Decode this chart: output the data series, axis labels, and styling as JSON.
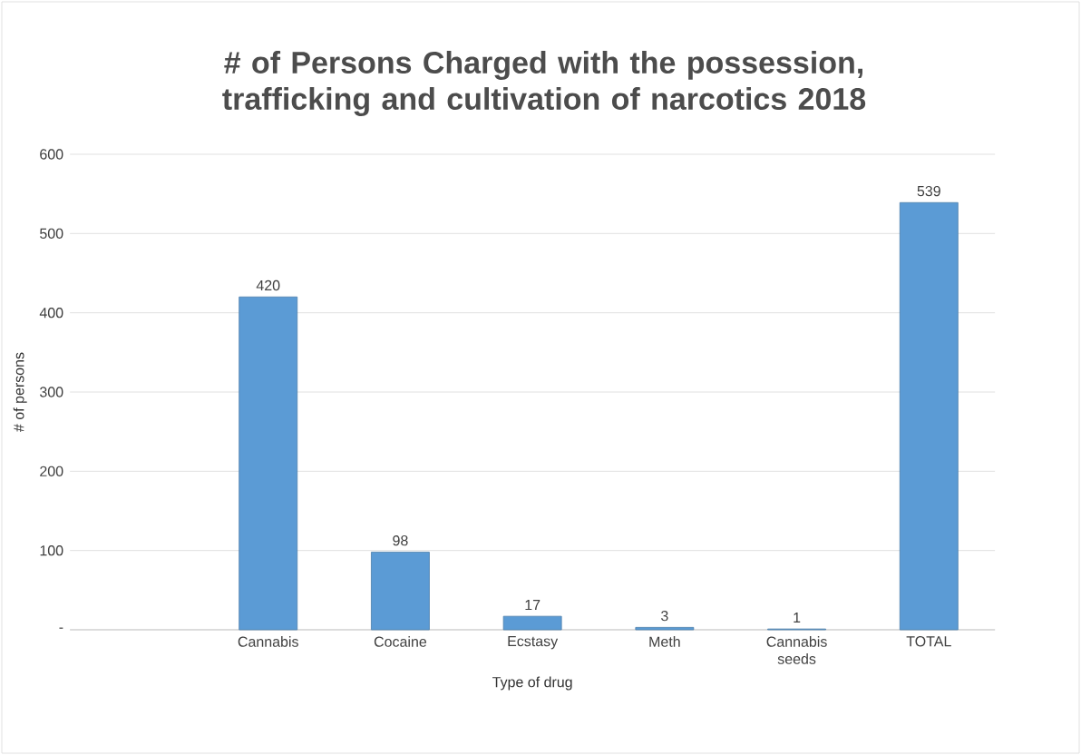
{
  "chart_data": {
    "type": "bar",
    "title": "# of Persons Charged with the possession, trafficking and cultivation of narcotics 2018",
    "xlabel": "Type of drug",
    "ylabel": "# of persons",
    "categories": [
      null,
      "Cannabis",
      "Cocaine",
      "Ecstasy",
      "Meth",
      "Cannabis seeds",
      "TOTAL"
    ],
    "values": [
      null,
      420,
      98,
      17,
      3,
      1,
      539
    ],
    "color": "#5b9bd5",
    "ylim": [
      0,
      600
    ],
    "yticks": [
      {
        "value": 0,
        "label": "-"
      },
      100,
      200,
      300,
      400,
      500,
      600
    ],
    "grid": "y",
    "data_labels": true
  }
}
